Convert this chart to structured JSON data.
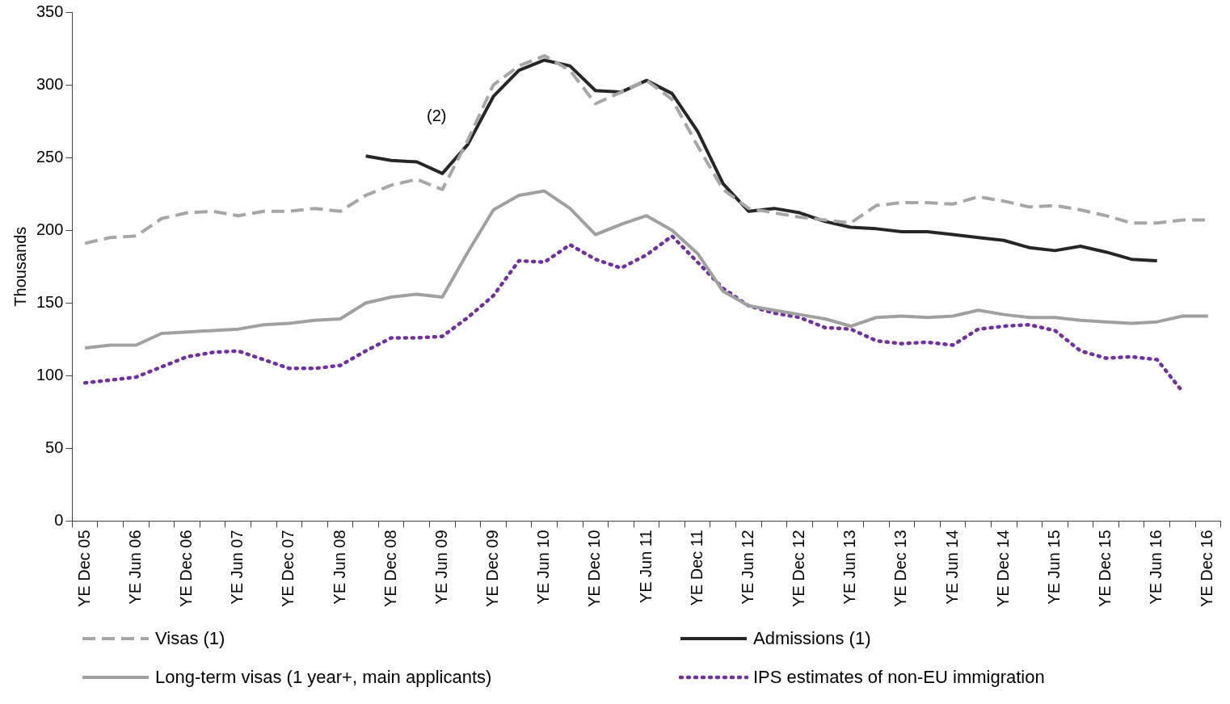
{
  "chart_data": {
    "type": "line",
    "ylabel": "Thousands",
    "ylim": [
      0,
      350
    ],
    "yticks": [
      0,
      50,
      100,
      150,
      200,
      250,
      300,
      350
    ],
    "grid": false,
    "legend": "bottom",
    "marker": "none",
    "categories": [
      "YE Dec 05",
      null,
      "YE Jun 06",
      null,
      "YE Dec 06",
      null,
      "YE Jun 07",
      null,
      "YE Dec 07",
      null,
      "YE Jun 08",
      null,
      "YE Dec 08",
      null,
      "YE Jun 09",
      null,
      "YE Dec 09",
      null,
      "YE Jun 10",
      null,
      "YE Dec 10",
      null,
      "YE Jun 11",
      null,
      "YE Dec 11",
      null,
      "YE Jun 12",
      null,
      "YE Dec 12",
      null,
      "YE Jun 13",
      null,
      "YE Dec 13",
      null,
      "YE Jun 14",
      null,
      "YE Dec 14",
      null,
      "YE Jun 15",
      null,
      "YE Dec 15",
      null,
      "YE Jun 16",
      null,
      "YE Dec 16"
    ],
    "series": [
      {
        "name": "Visas (1)",
        "color": "#a6a6a6",
        "line_style": "dashed",
        "values": [
          191,
          195,
          196,
          208,
          212,
          213,
          210,
          213,
          213,
          215,
          213,
          224,
          231,
          235,
          228,
          262,
          300,
          313,
          320,
          310,
          287,
          295,
          303,
          290,
          258,
          228,
          215,
          212,
          209,
          207,
          205,
          217,
          219,
          219,
          218,
          223,
          220,
          216,
          217,
          214,
          210,
          205,
          205,
          207,
          207
        ]
      },
      {
        "name": "Admissions (1)",
        "color": "#262626",
        "line_style": "solid",
        "values": [
          null,
          null,
          null,
          null,
          null,
          null,
          null,
          null,
          null,
          null,
          null,
          251,
          248,
          247,
          239,
          259,
          292,
          310,
          317,
          313,
          296,
          295,
          303,
          294,
          268,
          232,
          213,
          215,
          212,
          206,
          202,
          201,
          199,
          199,
          197,
          195,
          193,
          188,
          186,
          189,
          185,
          180,
          179,
          null,
          null
        ]
      },
      {
        "name": "Long-term visas (1 year+, main applicants)",
        "color": "#a0a0a0",
        "line_style": "solid",
        "values": [
          119,
          121,
          121,
          129,
          130,
          131,
          132,
          135,
          136,
          138,
          139,
          150,
          154,
          156,
          154,
          185,
          214,
          224,
          227,
          215,
          197,
          204,
          210,
          200,
          184,
          158,
          148,
          145,
          142,
          139,
          134,
          140,
          141,
          140,
          141,
          145,
          142,
          140,
          140,
          138,
          137,
          136,
          137,
          141,
          141
        ]
      },
      {
        "name": "IPS estimates of non-EU immigration",
        "color": "#7030a0",
        "line_style": "dotted",
        "values": [
          95,
          97,
          99,
          106,
          113,
          116,
          117,
          111,
          105,
          105,
          107,
          117,
          126,
          126,
          127,
          140,
          155,
          179,
          178,
          190,
          180,
          174,
          183,
          196,
          178,
          160,
          148,
          143,
          140,
          133,
          132,
          124,
          122,
          123,
          121,
          132,
          134,
          135,
          131,
          117,
          112,
          113,
          111,
          89,
          null
        ]
      }
    ],
    "annotations": [
      "(2)"
    ]
  }
}
